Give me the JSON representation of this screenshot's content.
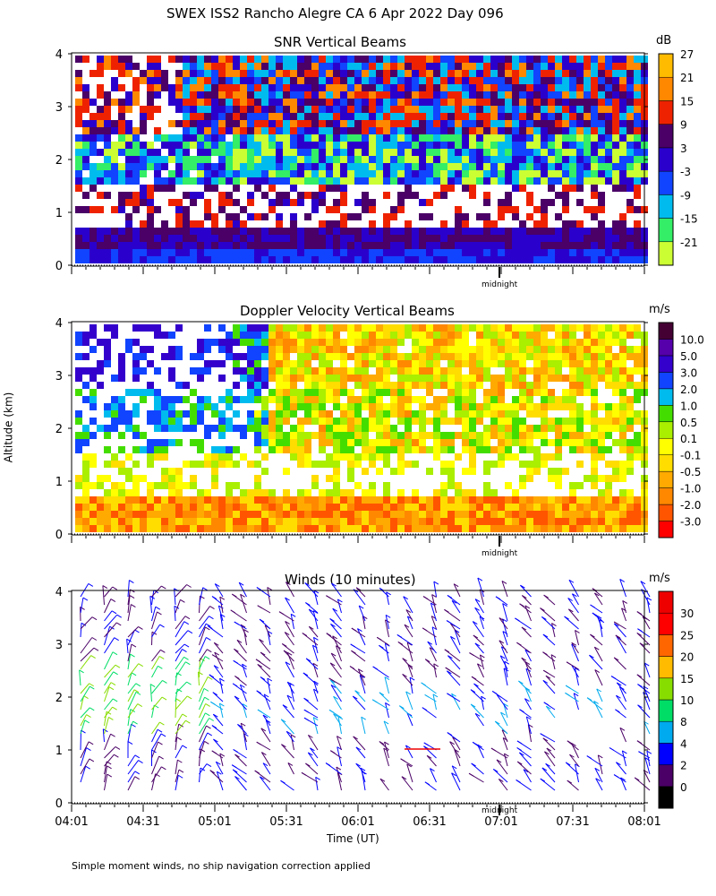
{
  "header": {
    "title": "SWEX ISS2 Rancho Alegre CA    6 Apr 2022 Day 096"
  },
  "footer": {
    "note": "Simple moment winds, no ship navigation correction applied"
  },
  "shared": {
    "ylabel": "Altitude (km)",
    "xlabel": "Time (UT)",
    "midnight_label": "midnight",
    "y_ticks": [
      "0",
      "1",
      "2",
      "3",
      "4"
    ],
    "x_ticks": [
      "04:01",
      "04:31",
      "05:01",
      "05:31",
      "06:01",
      "06:31",
      "07:01",
      "07:31",
      "08:01"
    ]
  },
  "chart_data": [
    {
      "type": "heatmap",
      "title": "SNR Vertical Beams",
      "unit": "dB",
      "ylim": [
        0,
        4
      ],
      "color_levels": [
        "-21",
        "-15",
        "-9",
        "-3",
        "3",
        "9",
        "15",
        "21",
        "27"
      ],
      "colors": [
        "#ccff33",
        "#33ee66",
        "#00bbee",
        "#1144ff",
        "#2a00cc",
        "#4a0066",
        "#ee2200",
        "#ff8800",
        "#ffbb00"
      ]
    },
    {
      "type": "heatmap",
      "title": "Doppler Velocity Vertical Beams",
      "unit": "m/s",
      "ylim": [
        0,
        4
      ],
      "color_levels": [
        "-3.0",
        "-2.0",
        "-1.0",
        "-0.5",
        "-0.1",
        "0.1",
        "0.5",
        "1.0",
        "2.0",
        "3.0",
        "5.0",
        "10.0"
      ],
      "colors": [
        "#ff0000",
        "#ff5500",
        "#ff8800",
        "#ffaa00",
        "#ffdd00",
        "#ffff00",
        "#aaee00",
        "#44dd00",
        "#00bbee",
        "#1144ff",
        "#3300cc",
        "#5500aa",
        "#440033"
      ]
    },
    {
      "type": "scatter",
      "title": "Winds (10 minutes)",
      "unit": "m/s",
      "ylim": [
        0,
        4
      ],
      "color_levels": [
        "0",
        "2",
        "4",
        "8",
        "10",
        "15",
        "20",
        "25",
        "30"
      ],
      "colors": [
        "#000000",
        "#4a0066",
        "#0000ff",
        "#00aaee",
        "#00dd66",
        "#88dd00",
        "#ffbb00",
        "#ff6600",
        "#ff0000",
        "#ee0000"
      ]
    }
  ]
}
